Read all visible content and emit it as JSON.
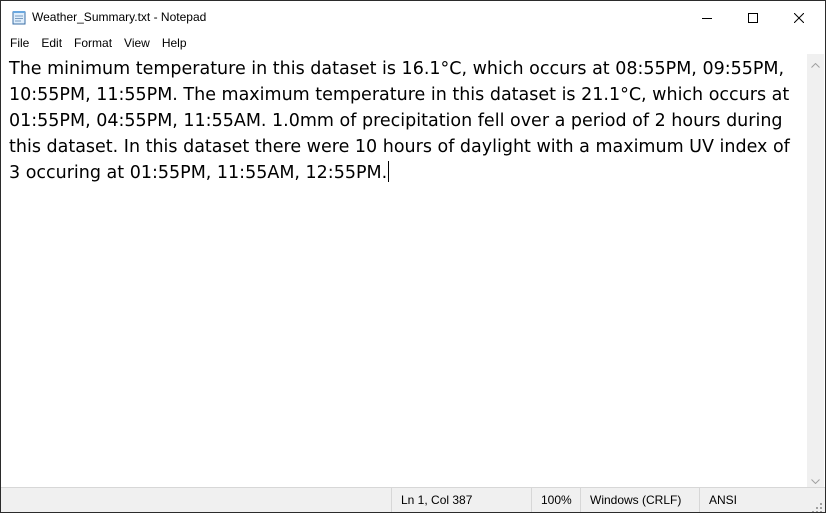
{
  "window": {
    "title": "Weather_Summary.txt - Notepad",
    "icons": {
      "app": "notepad-icon",
      "minimize": "minimize-icon",
      "maximize": "maximize-icon",
      "close": "close-icon"
    }
  },
  "menubar": {
    "items": [
      {
        "label": "File"
      },
      {
        "label": "Edit"
      },
      {
        "label": "Format"
      },
      {
        "label": "View"
      },
      {
        "label": "Help"
      }
    ]
  },
  "editor": {
    "content": "The minimum temperature in this dataset is 16.1°C, which occurs at 08:55PM, 09:55PM, 10:55PM, 11:55PM. The maximum temperature in this dataset is 21.1°C, which occurs at 01:55PM, 04:55PM, 11:55AM. 1.0mm of precipitation fell over a period of 2 hours during this dataset. In this dataset there were 10 hours of daylight with a maximum UV index of 3 occuring at 01:55PM, 11:55AM, 12:55PM."
  },
  "statusbar": {
    "position": "Ln 1, Col 387",
    "zoom": "100%",
    "line_ending": "Windows (CRLF)",
    "encoding": "ANSI"
  }
}
